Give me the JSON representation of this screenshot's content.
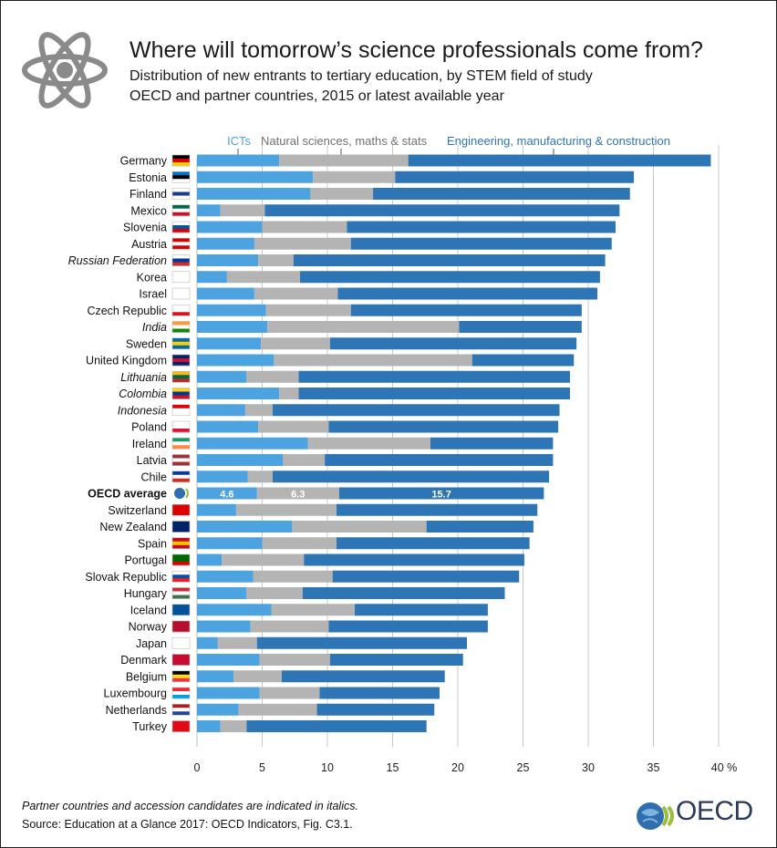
{
  "header": {
    "title": "Where will tomorrow’s science professionals come from?",
    "subtitle1": "Distribution of new entrants to tertiary education, by STEM field of study",
    "subtitle2": "OECD and partner countries, 2015 or latest available year"
  },
  "footer": {
    "note": "Partner countries and accession candidates are indicated in italics.",
    "source": "Source: Education at a Glance 2017: OECD Indicators, Fig. C3.1.",
    "logo_text": "OECD"
  },
  "colors": {
    "ict": "#4da3e0",
    "natsci": "#b4b4b4",
    "eng": "#2e75b6",
    "legend_ict": "#4da3e0",
    "legend_natsci": "#707070",
    "legend_eng": "#2e75b6"
  },
  "chart_data": {
    "type": "bar",
    "orientation": "horizontal",
    "stacked": true,
    "xlim": [
      0,
      40
    ],
    "xticks": [
      "0",
      "5",
      "10",
      "15",
      "20",
      "25",
      "30",
      "35",
      "40 %"
    ],
    "grid": true,
    "legend": [
      "ICTs",
      "Natural sciences, maths & stats",
      "Engineering, manufacturing & construction"
    ],
    "legend_placement": "top",
    "highlight": "OECD average",
    "highlight_labels": [
      "4.6",
      "6.3",
      "15.7"
    ],
    "series_names": [
      "ICTs",
      "Natural sciences, maths & stats",
      "Engineering, manufacturing & construction"
    ],
    "rows": [
      {
        "country": "Germany",
        "italic": false,
        "values": [
          6.3,
          9.9,
          23.2
        ]
      },
      {
        "country": "Estonia",
        "italic": false,
        "values": [
          8.9,
          6.3,
          18.3
        ]
      },
      {
        "country": "Finland",
        "italic": false,
        "values": [
          8.7,
          4.8,
          19.7
        ]
      },
      {
        "country": "Mexico",
        "italic": false,
        "values": [
          1.8,
          3.4,
          27.2
        ]
      },
      {
        "country": "Slovenia",
        "italic": false,
        "values": [
          5.0,
          6.5,
          20.6
        ]
      },
      {
        "country": "Austria",
        "italic": false,
        "values": [
          4.4,
          7.4,
          20.0
        ]
      },
      {
        "country": "Russian Federation",
        "italic": true,
        "values": [
          4.7,
          2.7,
          23.9
        ]
      },
      {
        "country": "Korea",
        "italic": false,
        "values": [
          2.3,
          5.6,
          23.0
        ]
      },
      {
        "country": "Israel",
        "italic": false,
        "values": [
          4.4,
          6.4,
          19.9
        ]
      },
      {
        "country": "Czech Republic",
        "italic": false,
        "values": [
          5.3,
          6.5,
          17.7
        ]
      },
      {
        "country": "India",
        "italic": true,
        "values": [
          5.4,
          14.7,
          9.4
        ]
      },
      {
        "country": "Sweden",
        "italic": false,
        "values": [
          4.9,
          5.3,
          18.9
        ]
      },
      {
        "country": "United Kingdom",
        "italic": false,
        "values": [
          5.9,
          15.2,
          7.8
        ]
      },
      {
        "country": "Lithuania",
        "italic": true,
        "values": [
          3.8,
          4.0,
          20.8
        ]
      },
      {
        "country": "Colombia",
        "italic": true,
        "values": [
          6.3,
          1.5,
          20.8
        ]
      },
      {
        "country": "Indonesia",
        "italic": true,
        "values": [
          3.7,
          2.1,
          22.0
        ]
      },
      {
        "country": "Poland",
        "italic": false,
        "values": [
          4.7,
          5.4,
          17.6
        ]
      },
      {
        "country": "Ireland",
        "italic": false,
        "values": [
          8.5,
          9.4,
          9.4
        ]
      },
      {
        "country": "Latvia",
        "italic": false,
        "values": [
          6.6,
          3.2,
          17.5
        ]
      },
      {
        "country": "Chile",
        "italic": false,
        "values": [
          3.9,
          1.9,
          21.2
        ]
      },
      {
        "country": "OECD average",
        "italic": false,
        "bold": true,
        "values": [
          4.6,
          6.3,
          15.7
        ]
      },
      {
        "country": "Switzerland",
        "italic": false,
        "values": [
          3.0,
          7.7,
          15.4
        ]
      },
      {
        "country": "New Zealand",
        "italic": false,
        "values": [
          7.3,
          10.3,
          8.2
        ]
      },
      {
        "country": "Spain",
        "italic": false,
        "values": [
          5.0,
          5.7,
          14.8
        ]
      },
      {
        "country": "Portugal",
        "italic": false,
        "values": [
          1.9,
          6.3,
          16.9
        ]
      },
      {
        "country": "Slovak Republic",
        "italic": false,
        "values": [
          4.3,
          6.1,
          14.3
        ]
      },
      {
        "country": "Hungary",
        "italic": false,
        "values": [
          3.8,
          4.3,
          15.5
        ]
      },
      {
        "country": "Iceland",
        "italic": false,
        "values": [
          5.7,
          6.4,
          10.2
        ]
      },
      {
        "country": "Norway",
        "italic": false,
        "values": [
          4.1,
          6.0,
          12.2
        ]
      },
      {
        "country": "Japan",
        "italic": false,
        "values": [
          1.6,
          3.0,
          16.1
        ]
      },
      {
        "country": "Denmark",
        "italic": false,
        "values": [
          4.8,
          5.4,
          10.2
        ]
      },
      {
        "country": "Belgium",
        "italic": false,
        "values": [
          2.8,
          3.7,
          12.5
        ]
      },
      {
        "country": "Luxembourg",
        "italic": false,
        "values": [
          4.8,
          4.6,
          9.2
        ]
      },
      {
        "country": "Netherlands",
        "italic": false,
        "values": [
          3.2,
          6.0,
          9.0
        ]
      },
      {
        "country": "Turkey",
        "italic": false,
        "values": [
          1.8,
          2.0,
          13.8
        ]
      }
    ]
  }
}
